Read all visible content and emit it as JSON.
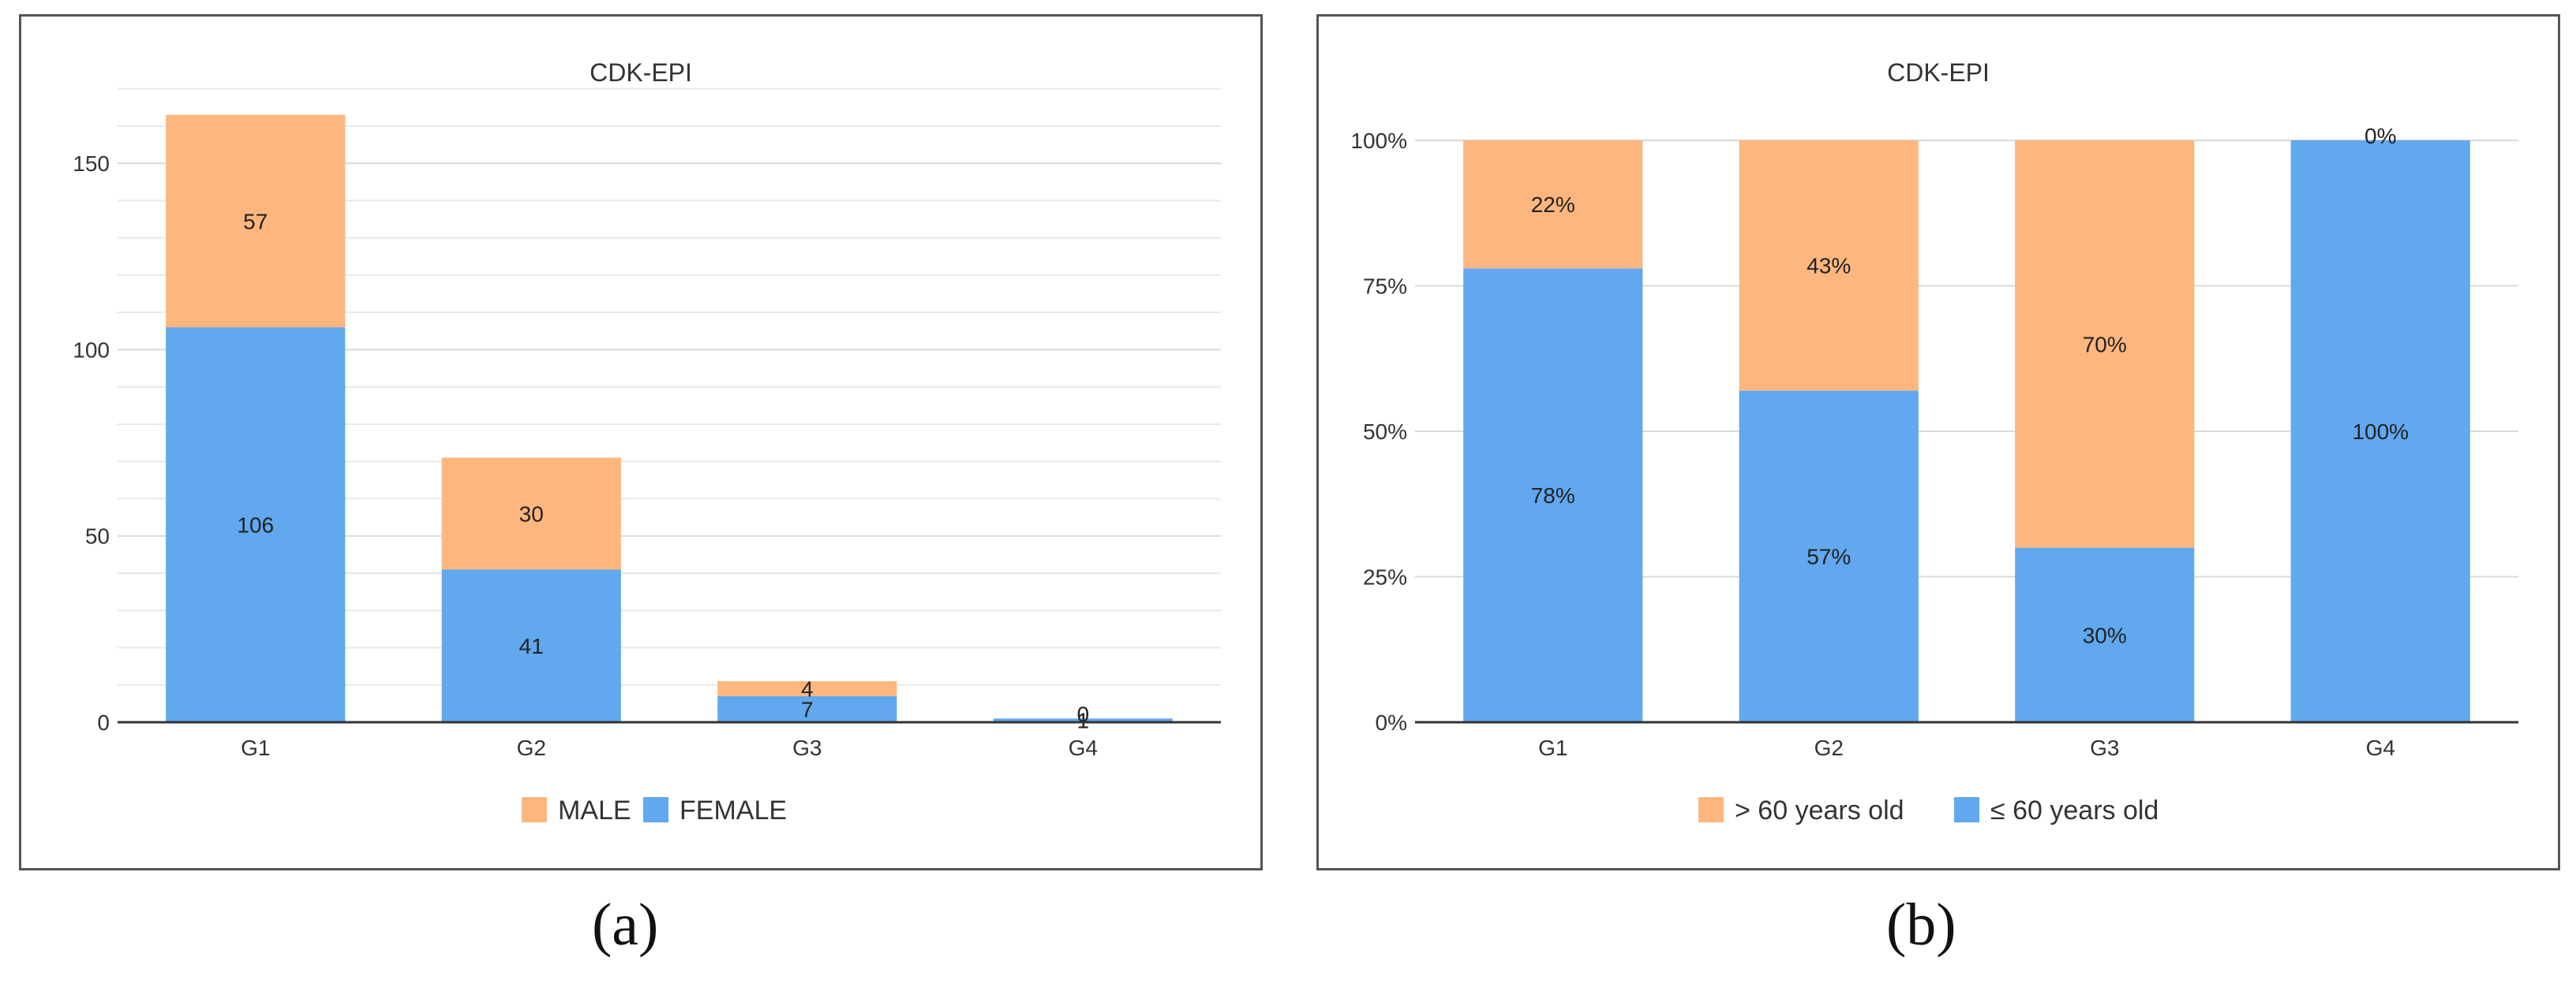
{
  "colors": {
    "orange": "#FDB67D",
    "blue": "#61A8EE",
    "grid": "#D9D9D9",
    "axis": "#333333",
    "text": "#333333"
  },
  "captions": {
    "a": "(a)",
    "b": "(b)"
  },
  "chart_data": [
    {
      "type": "bar",
      "stacked": true,
      "title": "CDK-EPI",
      "categories": [
        "G1",
        "G2",
        "G3",
        "G4"
      ],
      "series": [
        {
          "name": "FEMALE",
          "color": "#61A8EE",
          "values": [
            106,
            41,
            7,
            1
          ],
          "labels": [
            "106",
            "41",
            "7",
            "1"
          ]
        },
        {
          "name": "MALE",
          "color": "#FDB67D",
          "values": [
            57,
            30,
            4,
            0
          ],
          "labels": [
            "57",
            "30",
            "4",
            "0"
          ]
        }
      ],
      "legend_order": [
        "MALE",
        "FEMALE"
      ],
      "legend_position": "bottom",
      "ylim": [
        0,
        175
      ],
      "yticks": [
        0,
        50,
        100,
        150
      ],
      "ytick_labels": [
        "0",
        "50",
        "100",
        "150"
      ],
      "minor_grid_step": 10,
      "grid": true,
      "xlabel": "",
      "ylabel": ""
    },
    {
      "type": "bar",
      "stacked": true,
      "percent": true,
      "title": "CDK-EPI",
      "categories": [
        "G1",
        "G2",
        "G3",
        "G4"
      ],
      "series": [
        {
          "name": "≤ 60 years old",
          "color": "#61A8EE",
          "values": [
            78,
            57,
            30,
            100
          ],
          "labels": [
            "78%",
            "57%",
            "30%",
            "100%"
          ]
        },
        {
          "name": "> 60 years old",
          "color": "#FDB67D",
          "values": [
            22,
            43,
            70,
            0
          ],
          "labels": [
            "22%",
            "43%",
            "70%",
            "0%"
          ]
        }
      ],
      "legend_order": [
        "> 60 years old",
        "≤ 60 years old"
      ],
      "legend_position": "bottom",
      "ylim": [
        0,
        100
      ],
      "yticks": [
        0,
        25,
        50,
        75,
        100
      ],
      "ytick_labels": [
        "0%",
        "25%",
        "50%",
        "75%",
        "100%"
      ],
      "grid": true,
      "xlabel": "",
      "ylabel": ""
    }
  ]
}
